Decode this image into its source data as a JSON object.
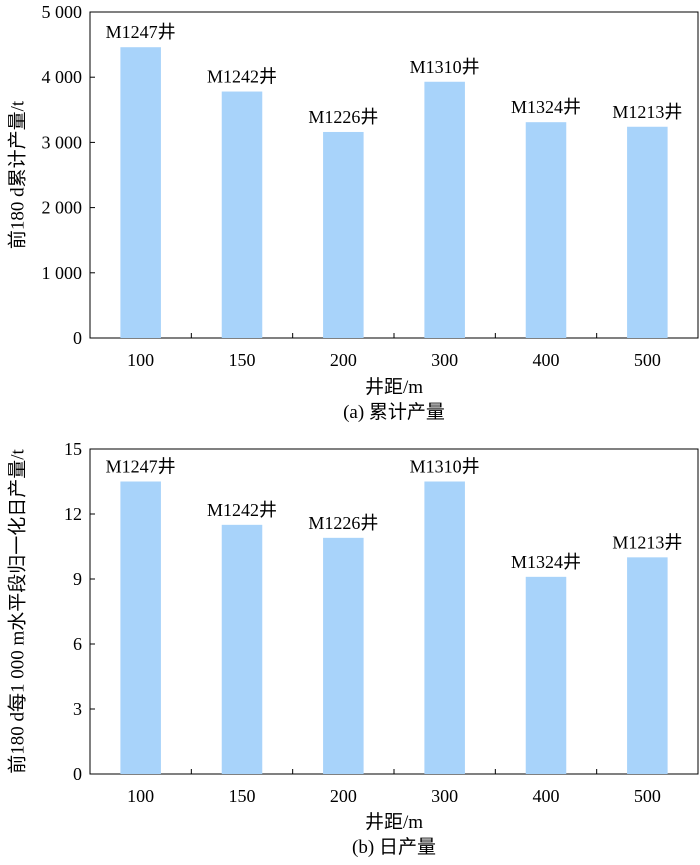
{
  "chart_data": [
    {
      "type": "bar",
      "categories": [
        "100",
        "150",
        "200",
        "300",
        "400",
        "500"
      ],
      "values": [
        4460,
        3780,
        3160,
        3930,
        3310,
        3240
      ],
      "bar_labels": [
        "M1247井",
        "M1242井",
        "M1226井",
        "M1310井",
        "M1324井",
        "M1213井"
      ],
      "xlabel": "井距/m",
      "ylabel": "前180 d累计产量/t",
      "ylim": [
        0,
        5000
      ],
      "yticks": [
        0,
        1000,
        2000,
        3000,
        4000,
        5000
      ],
      "ytick_labels": [
        "0",
        "1 000",
        "2 000",
        "3 000",
        "4 000",
        "5 000"
      ],
      "caption": "(a) 累计产量",
      "bar_color": "#a8d3fa",
      "grid": false
    },
    {
      "type": "bar",
      "categories": [
        "100",
        "150",
        "200",
        "300",
        "400",
        "500"
      ],
      "values": [
        13.5,
        11.5,
        10.9,
        13.5,
        9.1,
        10.0
      ],
      "bar_labels": [
        "M1247井",
        "M1242井",
        "M1226井",
        "M1310井",
        "M1324井",
        "M1213井"
      ],
      "xlabel": "井距/m",
      "ylabel": "前180 d每1 000 m水平段归一化日产量/t",
      "ylim": [
        0,
        15
      ],
      "yticks": [
        0,
        3,
        6,
        9,
        12,
        15
      ],
      "ytick_labels": [
        "0",
        "3",
        "6",
        "9",
        "12",
        "15"
      ],
      "caption": "(b) 日产量",
      "bar_color": "#a8d3fa",
      "grid": false
    }
  ]
}
